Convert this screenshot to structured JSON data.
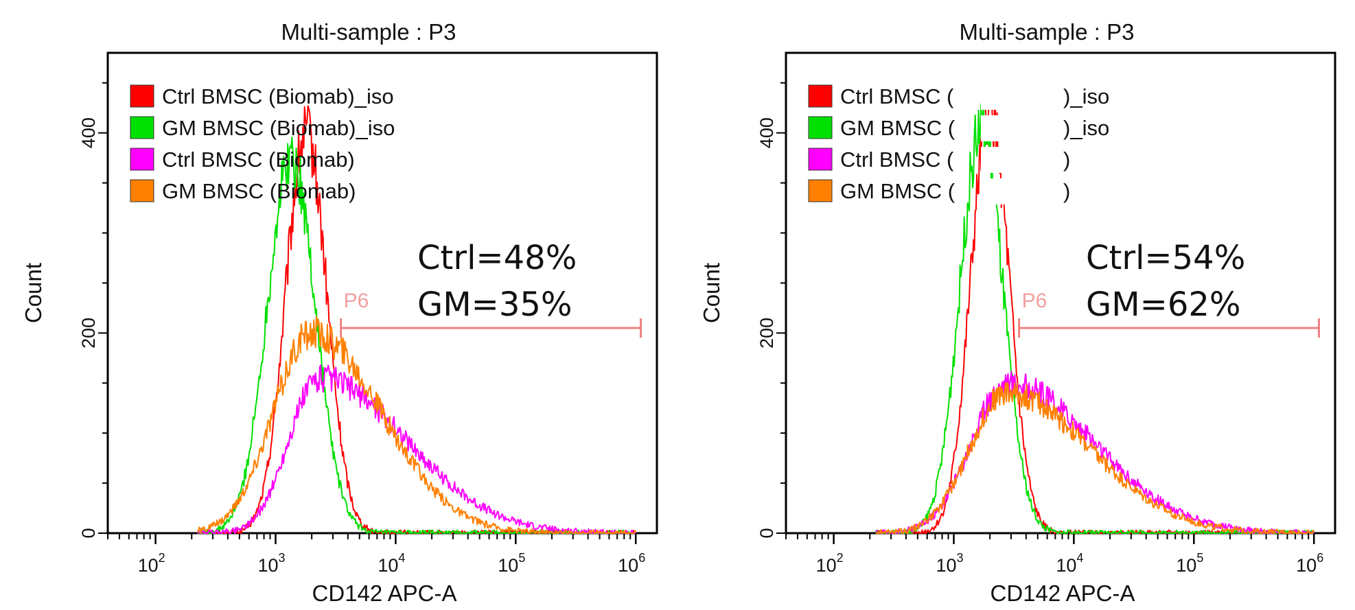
{
  "chart_data": [
    {
      "type": "line",
      "subtype": "histogram",
      "title": "Multi-sample : P3",
      "xlabel": "CD142 APC-A",
      "ylabel": "Count",
      "xscale": "log",
      "xlim": [
        40,
        1500000
      ],
      "ylim": [
        0,
        480
      ],
      "x_ticks": [
        {
          "base": "10",
          "exp": "2"
        },
        {
          "base": "10",
          "exp": "3"
        },
        {
          "base": "10",
          "exp": "4"
        },
        {
          "base": "10",
          "exp": "5"
        },
        {
          "base": "10",
          "exp": "6"
        }
      ],
      "y_ticks": [
        "0",
        "200",
        "400"
      ],
      "legend_position": "top-left",
      "legend": [
        {
          "label": "Ctrl BMSC (Biomab)_iso",
          "color": "#ff0000"
        },
        {
          "label": "GM BMSC (Biomab)_iso",
          "color": "#00e000"
        },
        {
          "label": "Ctrl BMSC (Biomab)",
          "color": "#ff00ff"
        },
        {
          "label": "GM BMSC (Biomab)",
          "color": "#ff8000"
        }
      ],
      "annotations": [
        "Ctrl=48%",
        "GM=35%"
      ],
      "gate": {
        "label": "P6",
        "x_start": 3500,
        "x_end": 1100000,
        "y": 205,
        "color": "#f08080"
      },
      "series": [
        {
          "name": "Ctrl BMSC (Biomab)_iso",
          "color": "#ff0000",
          "peak_x": 1800,
          "peak_y": 400,
          "sigma": 0.17
        },
        {
          "name": "GM BMSC (Biomab)_iso",
          "color": "#00e000",
          "peak_x": 1350,
          "peak_y": 375,
          "sigma": 0.2
        },
        {
          "name": "Ctrl BMSC (Biomab)",
          "color": "#ff00ff",
          "peak_x": 2300,
          "peak_y": 155,
          "sigma_left": 0.25,
          "sigma_right": 0.72
        },
        {
          "name": "GM BMSC (Biomab)",
          "color": "#ff8000",
          "peak_x": 2000,
          "peak_y": 200,
          "sigma_left": 0.32,
          "sigma_right": 0.58
        }
      ]
    },
    {
      "type": "line",
      "subtype": "histogram",
      "title": "Multi-sample : P3",
      "xlabel": "CD142 APC-A",
      "ylabel": "Count",
      "xscale": "log",
      "xlim": [
        40,
        1500000
      ],
      "ylim": [
        0,
        480
      ],
      "x_ticks": [
        {
          "base": "10",
          "exp": "2"
        },
        {
          "base": "10",
          "exp": "3"
        },
        {
          "base": "10",
          "exp": "4"
        },
        {
          "base": "10",
          "exp": "5"
        },
        {
          "base": "10",
          "exp": "6"
        }
      ],
      "y_ticks": [
        "0",
        "200",
        "400"
      ],
      "legend_position": "top-left",
      "legend": [
        {
          "label": "Ctrl BMSC (",
          "label_end": ")_iso",
          "color": "#ff0000"
        },
        {
          "label": "GM BMSC (",
          "label_end": ")_iso",
          "color": "#00e000"
        },
        {
          "label": "Ctrl BMSC (",
          "label_end": ")",
          "color": "#ff00ff"
        },
        {
          "label": "GM BMSC (",
          "label_end": ")",
          "color": "#ff8000"
        }
      ],
      "annotations": [
        "Ctrl=54%",
        "GM=62%"
      ],
      "gate": {
        "label": "P6",
        "x_start": 3500,
        "x_end": 1100000,
        "y": 205,
        "color": "#f08080"
      },
      "series": [
        {
          "name": "Ctrl BMSC ()_iso",
          "color": "#ff0000",
          "peak_x": 2000,
          "peak_y": 420,
          "sigma": 0.16
        },
        {
          "name": "GM BMSC ()_iso",
          "color": "#00e000",
          "peak_x": 1700,
          "peak_y": 405,
          "sigma": 0.18
        },
        {
          "name": "Ctrl BMSC ()",
          "color": "#ff00ff",
          "peak_x": 2800,
          "peak_y": 150,
          "sigma_left": 0.3,
          "sigma_right": 0.72
        },
        {
          "name": "GM BMSC ()",
          "color": "#ff8000",
          "peak_x": 2700,
          "peak_y": 140,
          "sigma_left": 0.3,
          "sigma_right": 0.7
        }
      ]
    }
  ]
}
